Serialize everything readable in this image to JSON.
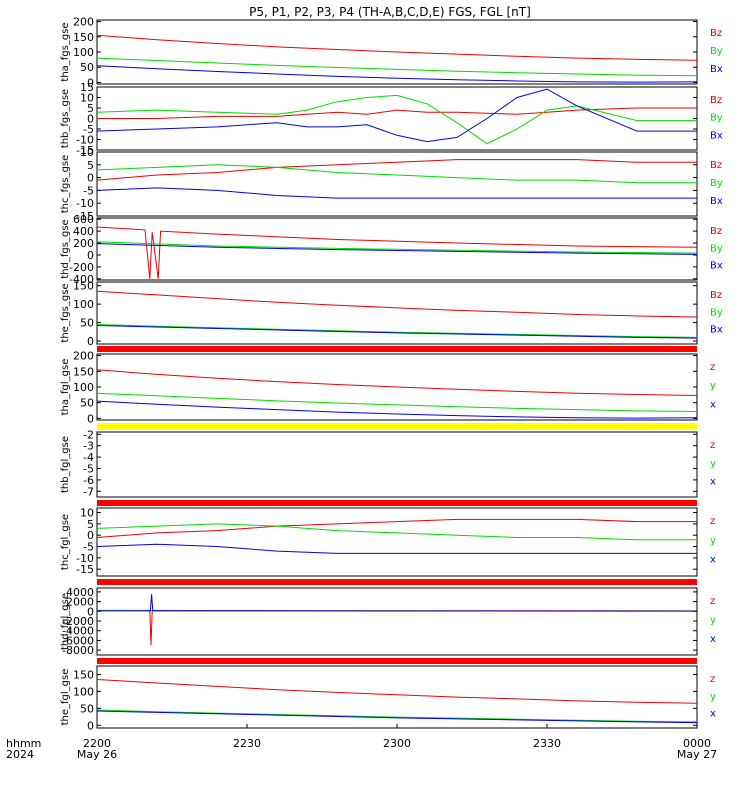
{
  "title": "P5, P1, P2, P3, P4 (TH-A,B,C,D,E) FGS, FGL [nT]",
  "time_axis": {
    "label_rows": [
      "hhmm",
      "2024"
    ],
    "ticks": [
      "2200",
      "2230",
      "2300",
      "2330",
      "0000"
    ],
    "date_labels": [
      "May 26",
      "May 27"
    ]
  },
  "colors": {
    "x": "#0000ee",
    "y": "#00dd00",
    "z": "#ee0000",
    "bar_red": "#ff0000",
    "bar_yellow": "#ffff00",
    "axis": "#000000"
  },
  "panels": [
    {
      "ylabel": "tha_fgs_gse",
      "ticks": [
        "0",
        "50",
        "100",
        "150",
        "200"
      ],
      "legend": [
        "Bz",
        "By",
        "Bx"
      ]
    },
    {
      "ylabel": "thb_fgs_gse",
      "ticks": [
        "-15",
        "-10",
        "-5",
        "0",
        "5",
        "10",
        "15"
      ],
      "legend": [
        "Bz",
        "By",
        "Bx"
      ]
    },
    {
      "ylabel": "thc_fgs_gse",
      "ticks": [
        "-15",
        "-10",
        "-5",
        "0",
        "5",
        "10"
      ],
      "legend": [
        "Bz",
        "By",
        "Bx"
      ]
    },
    {
      "ylabel": "thd_fgs_gse",
      "ticks": [
        "-400",
        "-200",
        "0",
        "200",
        "400",
        "600"
      ],
      "legend": [
        "Bz",
        "By",
        "Bx"
      ]
    },
    {
      "ylabel": "the_fgs_gse",
      "ticks": [
        "0",
        "50",
        "100",
        "150"
      ],
      "legend": [
        "Bz",
        "By",
        "Bx"
      ]
    },
    {
      "ylabel": "tha_fgl_gse",
      "ticks": [
        "0",
        "50",
        "100",
        "150",
        "200"
      ],
      "legend": [
        "z",
        "y",
        "x"
      ]
    },
    {
      "ylabel": "thb_fgl_gse",
      "ticks": [
        "-7",
        "-6",
        "-5",
        "-4",
        "-3",
        "-2"
      ],
      "legend": [
        "z",
        "y",
        "x"
      ]
    },
    {
      "ylabel": "thc_fgl_gse",
      "ticks": [
        "-15",
        "-10",
        "-5",
        "0",
        "5",
        "10"
      ],
      "legend": [
        "z",
        "y",
        "x"
      ]
    },
    {
      "ylabel": "thd_fgl_gse",
      "ticks": [
        "-8000",
        "-6000",
        "-4000",
        "-2000",
        "0",
        "2000",
        "4000"
      ],
      "legend": [
        "z",
        "y",
        "x"
      ]
    },
    {
      "ylabel": "the_fgl_gse",
      "ticks": [
        "0",
        "50",
        "100",
        "150"
      ],
      "legend": [
        "z",
        "y",
        "x"
      ]
    }
  ],
  "chart_data": [
    {
      "type": "line",
      "ylabel": "tha_fgs_gse",
      "x_range": [
        "2200",
        "0000"
      ],
      "ylim": [
        -5,
        205
      ],
      "series": [
        {
          "name": "Bz",
          "x": [
            0,
            10,
            20,
            30,
            40,
            50,
            60,
            70,
            80,
            90,
            100
          ],
          "values": [
            155,
            140,
            128,
            117,
            108,
            100,
            93,
            86,
            80,
            76,
            73
          ]
        },
        {
          "name": "By",
          "x": [
            0,
            10,
            20,
            30,
            40,
            50,
            60,
            70,
            80,
            90,
            100
          ],
          "values": [
            80,
            72,
            64,
            56,
            49,
            43,
            37,
            32,
            28,
            24,
            22
          ]
        },
        {
          "name": "Bx",
          "x": [
            0,
            10,
            20,
            30,
            40,
            50,
            60,
            70,
            80,
            90,
            100
          ],
          "values": [
            55,
            45,
            36,
            28,
            20,
            14,
            9,
            5,
            2,
            1,
            2
          ]
        }
      ]
    },
    {
      "type": "line",
      "ylabel": "thb_fgs_gse",
      "x_range": [
        "2200",
        "0000"
      ],
      "ylim": [
        -15,
        15
      ],
      "series": [
        {
          "name": "Bz",
          "x": [
            0,
            10,
            20,
            30,
            35,
            40,
            45,
            50,
            55,
            60,
            70,
            75,
            80,
            90,
            100
          ],
          "values": [
            0,
            0,
            1,
            1,
            2,
            3,
            2,
            4,
            3,
            3,
            2,
            3,
            4,
            5,
            5
          ]
        },
        {
          "name": "By",
          "x": [
            0,
            10,
            20,
            30,
            35,
            40,
            45,
            50,
            55,
            60,
            65,
            70,
            75,
            80,
            90,
            100
          ],
          "values": [
            3,
            4,
            3,
            2,
            4,
            8,
            10,
            11,
            7,
            -2,
            -12,
            -5,
            4,
            6,
            -1,
            -1
          ]
        },
        {
          "name": "Bx",
          "x": [
            0,
            10,
            20,
            30,
            35,
            40,
            45,
            50,
            55,
            60,
            65,
            70,
            75,
            80,
            90,
            100
          ],
          "values": [
            -6,
            -5,
            -4,
            -2,
            -4,
            -4,
            -3,
            -8,
            -11,
            -9,
            0,
            10,
            14,
            6,
            -6,
            -6
          ]
        }
      ]
    },
    {
      "type": "line",
      "ylabel": "thc_fgs_gse",
      "x_range": [
        "2200",
        "0000"
      ],
      "ylim": [
        -15,
        10
      ],
      "series": [
        {
          "name": "Bz",
          "x": [
            0,
            10,
            20,
            30,
            40,
            50,
            60,
            70,
            80,
            90,
            100
          ],
          "values": [
            -1,
            1,
            2,
            4,
            5,
            6,
            7,
            7,
            7,
            6,
            6
          ]
        },
        {
          "name": "By",
          "x": [
            0,
            10,
            20,
            30,
            40,
            50,
            60,
            70,
            80,
            90,
            100
          ],
          "values": [
            3,
            4,
            5,
            4,
            2,
            1,
            0,
            -1,
            -1,
            -2,
            -2
          ]
        },
        {
          "name": "Bx",
          "x": [
            0,
            10,
            20,
            30,
            40,
            50,
            60,
            70,
            80,
            90,
            100
          ],
          "values": [
            -5,
            -4,
            -5,
            -7,
            -8,
            -8,
            -8,
            -8,
            -8,
            -8,
            -8
          ]
        }
      ]
    },
    {
      "type": "line",
      "ylabel": "thd_fgs_gse",
      "x_range": [
        "2200",
        "0000"
      ],
      "ylim": [
        -420,
        620
      ],
      "series": [
        {
          "name": "Bz",
          "x": [
            0,
            8,
            8.8,
            9.2,
            10.2,
            10.6,
            20,
            40,
            60,
            80,
            100
          ],
          "values": [
            470,
            420,
            -400,
            380,
            -400,
            400,
            350,
            260,
            200,
            150,
            130
          ]
        },
        {
          "name": "By",
          "x": [
            0,
            20,
            40,
            60,
            80,
            100
          ],
          "values": [
            220,
            150,
            110,
            80,
            50,
            30
          ]
        },
        {
          "name": "Bx",
          "x": [
            0,
            20,
            40,
            60,
            80,
            100
          ],
          "values": [
            190,
            130,
            90,
            60,
            30,
            10
          ]
        }
      ]
    },
    {
      "type": "line",
      "ylabel": "the_fgs_gse",
      "x_range": [
        "2200",
        "0000"
      ],
      "ylim": [
        -8,
        160
      ],
      "series": [
        {
          "name": "Bz",
          "x": [
            0,
            10,
            20,
            30,
            40,
            50,
            60,
            70,
            80,
            90,
            100
          ],
          "values": [
            135,
            125,
            115,
            105,
            97,
            90,
            83,
            78,
            72,
            68,
            65
          ]
        },
        {
          "name": "By",
          "x": [
            0,
            10,
            20,
            30,
            40,
            50,
            60,
            70,
            80,
            90,
            100
          ],
          "values": [
            45,
            40,
            36,
            32,
            28,
            24,
            21,
            18,
            15,
            12,
            10
          ]
        },
        {
          "name": "Bx",
          "x": [
            0,
            10,
            20,
            30,
            40,
            50,
            60,
            70,
            80,
            90,
            100
          ],
          "values": [
            42,
            38,
            34,
            30,
            26,
            22,
            19,
            16,
            13,
            10,
            8
          ]
        }
      ]
    },
    {
      "type": "line",
      "ylabel": "tha_fgl_gse",
      "x_range": [
        "2200",
        "0000"
      ],
      "ylim": [
        -5,
        205
      ],
      "series": [
        {
          "name": "z",
          "x": [
            0,
            10,
            20,
            30,
            40,
            50,
            60,
            70,
            80,
            90,
            100
          ],
          "values": [
            155,
            140,
            128,
            117,
            108,
            100,
            93,
            86,
            80,
            76,
            73
          ]
        },
        {
          "name": "y",
          "x": [
            0,
            10,
            20,
            30,
            40,
            50,
            60,
            70,
            80,
            90,
            100
          ],
          "values": [
            80,
            72,
            64,
            56,
            49,
            43,
            37,
            32,
            28,
            24,
            22
          ]
        },
        {
          "name": "x",
          "x": [
            0,
            10,
            20,
            30,
            40,
            50,
            60,
            70,
            80,
            90,
            100
          ],
          "values": [
            55,
            45,
            36,
            28,
            20,
            14,
            9,
            5,
            2,
            1,
            2
          ]
        }
      ]
    },
    {
      "type": "line",
      "ylabel": "thb_fgl_gse",
      "x_range": [
        "2200",
        "0000"
      ],
      "ylim": [
        -7.5,
        -1.8
      ],
      "series": []
    },
    {
      "type": "line",
      "ylabel": "thc_fgl_gse",
      "x_range": [
        "2200",
        "0000"
      ],
      "ylim": [
        -18,
        12
      ],
      "series": [
        {
          "name": "z",
          "x": [
            0,
            10,
            20,
            30,
            40,
            50,
            60,
            70,
            80,
            90,
            100
          ],
          "values": [
            -1,
            1,
            2,
            4,
            5,
            6,
            7,
            7,
            7,
            6,
            6
          ]
        },
        {
          "name": "y",
          "x": [
            0,
            10,
            20,
            30,
            40,
            50,
            60,
            70,
            80,
            90,
            100
          ],
          "values": [
            3,
            4,
            5,
            4,
            2,
            1,
            0,
            -1,
            -1,
            -2,
            -2
          ]
        },
        {
          "name": "x",
          "x": [
            0,
            10,
            20,
            30,
            40,
            50,
            60,
            70,
            80,
            90,
            100
          ],
          "values": [
            -5,
            -4,
            -5,
            -7,
            -8,
            -8,
            -8,
            -8,
            -8,
            -8,
            -8
          ]
        }
      ]
    },
    {
      "type": "line",
      "ylabel": "thd_fgl_gse",
      "x_range": [
        "2200",
        "0000"
      ],
      "ylim": [
        -9000,
        4800
      ],
      "series": [
        {
          "name": "z",
          "x": [
            0,
            8.8,
            9.0,
            9.2,
            10.2,
            20,
            50,
            100
          ],
          "values": [
            200,
            200,
            -7000,
            200,
            200,
            150,
            120,
            100
          ]
        },
        {
          "name": "y",
          "x": [
            0,
            20,
            50,
            100
          ],
          "values": [
            150,
            100,
            80,
            60
          ]
        },
        {
          "name": "x",
          "x": [
            0,
            8.9,
            9.1,
            9.3,
            20,
            50,
            100
          ],
          "values": [
            100,
            100,
            3500,
            100,
            80,
            60,
            40
          ]
        }
      ]
    },
    {
      "type": "line",
      "ylabel": "the_fgl_gse",
      "x_range": [
        "2200",
        "0000"
      ],
      "ylim": [
        -8,
        175
      ],
      "series": [
        {
          "name": "z",
          "x": [
            0,
            10,
            20,
            30,
            40,
            50,
            60,
            70,
            80,
            90,
            100
          ],
          "values": [
            135,
            125,
            115,
            105,
            97,
            90,
            83,
            78,
            72,
            68,
            65
          ]
        },
        {
          "name": "y",
          "x": [
            0,
            10,
            20,
            30,
            40,
            50,
            60,
            70,
            80,
            90,
            100
          ],
          "values": [
            45,
            40,
            36,
            32,
            28,
            24,
            21,
            18,
            15,
            12,
            10
          ]
        },
        {
          "name": "x",
          "x": [
            0,
            10,
            20,
            30,
            40,
            50,
            60,
            70,
            80,
            90,
            100
          ],
          "values": [
            42,
            38,
            34,
            30,
            26,
            22,
            19,
            16,
            13,
            10,
            8
          ]
        }
      ]
    }
  ]
}
